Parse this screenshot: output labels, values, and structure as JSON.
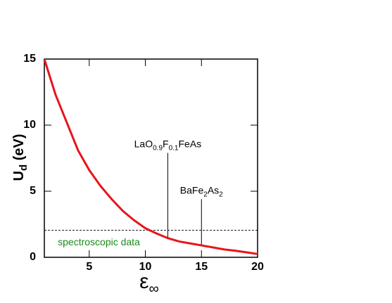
{
  "chart_data": {
    "type": "line",
    "x_label": [
      "ε",
      "∞"
    ],
    "y_label": [
      "U",
      "d",
      " (eV)"
    ],
    "x": [
      1,
      2,
      3,
      4,
      5,
      6,
      7,
      8,
      9,
      10,
      11,
      12,
      13,
      14,
      15,
      16,
      17,
      18,
      19,
      20
    ],
    "series": [
      {
        "color": "#e8141a",
        "values": [
          15,
          12.3,
          10.2,
          8.1,
          6.6,
          5.4,
          4.4,
          3.5,
          2.8,
          2.2,
          1.8,
          1.45,
          1.2,
          1.05,
          0.9,
          0.75,
          0.6,
          0.5,
          0.38,
          0.25
        ]
      }
    ],
    "xlim": [
      1,
      20
    ],
    "xticks": [
      5,
      10,
      15,
      20
    ],
    "ylim": [
      0,
      15
    ],
    "yticks": [
      0,
      5,
      10,
      15
    ],
    "reference_line": {
      "value": 2.05,
      "label": "spectroscopic data",
      "label_color": "#1a8a1a",
      "label_x": 2.2,
      "label_y": 1.1
    },
    "annotations": [
      {
        "parts": [
          "LaO",
          "0.9",
          "F",
          "0.1",
          "FeAs"
        ],
        "x": 12,
        "y_low": 1.5,
        "y_high": 7.9
      },
      {
        "parts": [
          "BaFe",
          "2",
          "As",
          "2"
        ],
        "x": 15,
        "y_low": 0.95,
        "y_high": 4.4
      }
    ]
  }
}
